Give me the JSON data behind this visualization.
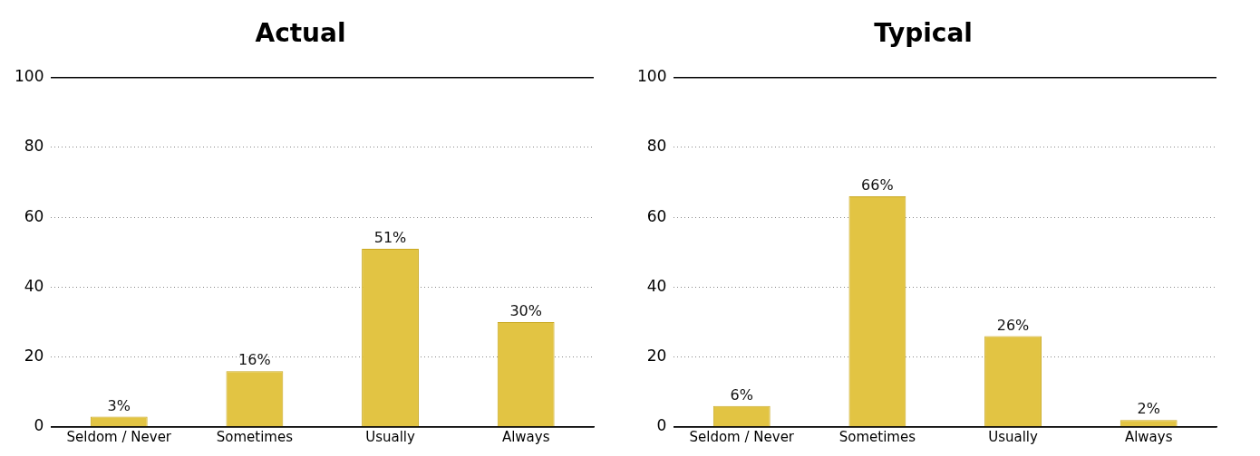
{
  "chart_data": [
    {
      "type": "bar",
      "title": "Actual",
      "categories": [
        "Seldom / Never",
        "Sometimes",
        "Usually",
        "Always"
      ],
      "values": [
        3,
        16,
        51,
        30
      ],
      "value_labels": [
        "3%",
        "16%",
        "51%",
        "30%"
      ],
      "color": "#e2c443",
      "ylim": [
        0,
        100
      ],
      "yticks": [
        0,
        20,
        40,
        60,
        80,
        100
      ],
      "grid": "y"
    },
    {
      "type": "bar",
      "title": "Typical",
      "categories": [
        "Seldom / Never",
        "Sometimes",
        "Usually",
        "Always"
      ],
      "values": [
        6,
        66,
        26,
        2
      ],
      "value_labels": [
        "6%",
        "66%",
        "26%",
        "2%"
      ],
      "color": "#e2c443",
      "ylim": [
        0,
        100
      ],
      "yticks": [
        0,
        20,
        40,
        60,
        80,
        100
      ],
      "grid": "y"
    }
  ]
}
